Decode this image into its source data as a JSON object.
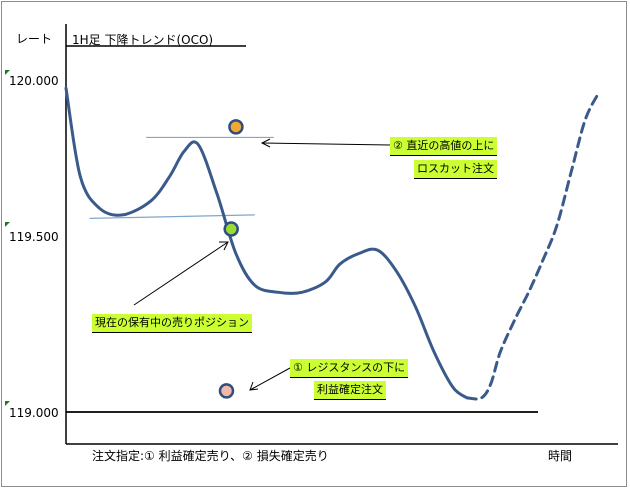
{
  "chart_data": {
    "type": "line",
    "title": "1H足 下降トレンド(OCO)",
    "ylabel": "レート",
    "xlabel": "時間",
    "yticks": [
      "120.000",
      "119.500",
      "119.000"
    ],
    "ylim": [
      119.0,
      120.05
    ],
    "series": [
      {
        "style": "solid",
        "color": "#3a5a8c",
        "points": [
          [
            0,
            119.92
          ],
          [
            3,
            119.67
          ],
          [
            7,
            119.58
          ],
          [
            12,
            119.56
          ],
          [
            18,
            119.6
          ],
          [
            22,
            119.67
          ],
          [
            25,
            119.74
          ],
          [
            28,
            119.76
          ],
          [
            32,
            119.62
          ],
          [
            36,
            119.45
          ],
          [
            40,
            119.36
          ],
          [
            45,
            119.34
          ],
          [
            50,
            119.34
          ],
          [
            55,
            119.37
          ],
          [
            58,
            119.42
          ],
          [
            62,
            119.45
          ],
          [
            66,
            119.46
          ],
          [
            70,
            119.4
          ],
          [
            74,
            119.3
          ],
          [
            78,
            119.17
          ],
          [
            82,
            119.07
          ],
          [
            85,
            119.04
          ]
        ]
      },
      {
        "style": "dashed",
        "color": "#3a5a8c",
        "points": [
          [
            85,
            119.04
          ],
          [
            88,
            119.04
          ],
          [
            90,
            119.08
          ],
          [
            92,
            119.17
          ],
          [
            95,
            119.26
          ],
          [
            98,
            119.34
          ],
          [
            101,
            119.43
          ],
          [
            104,
            119.53
          ],
          [
            107,
            119.68
          ],
          [
            110,
            119.83
          ],
          [
            113,
            119.91
          ]
        ]
      }
    ],
    "reference_lines": [
      {
        "color": "#7fa7c9",
        "points": [
          [
            17,
            119.78
          ],
          [
            44,
            119.78
          ]
        ]
      },
      {
        "color": "#7fa7c9",
        "points": [
          [
            5,
            119.55
          ],
          [
            40,
            119.56
          ]
        ]
      },
      {
        "color": "#000000",
        "points": [
          [
            0,
            119.0
          ],
          [
            100,
            119.0
          ]
        ]
      }
    ],
    "markers": [
      {
        "name": "stop-loss-order",
        "x": 36,
        "y": 119.81,
        "fill": "#f0a830"
      },
      {
        "name": "current-position",
        "x": 35,
        "y": 119.52,
        "fill": "#99dd33"
      },
      {
        "name": "take-profit-order",
        "x": 34,
        "y": 119.06,
        "fill": "#f2b9a8"
      }
    ],
    "annotations": [
      {
        "lines": [
          "② 直近の高値の上に",
          "ロスカット注文"
        ],
        "arrow_to": "stop-loss-order"
      },
      {
        "lines": [
          "現在の保有中の売りポジション"
        ],
        "arrow_to": "current-position"
      },
      {
        "lines": [
          "① レジスタンスの下に",
          "利益確定注文"
        ],
        "arrow_to": "take-profit-order"
      }
    ],
    "footer_note": "注文指定:① 利益確定売り、② 損失確定売り"
  }
}
